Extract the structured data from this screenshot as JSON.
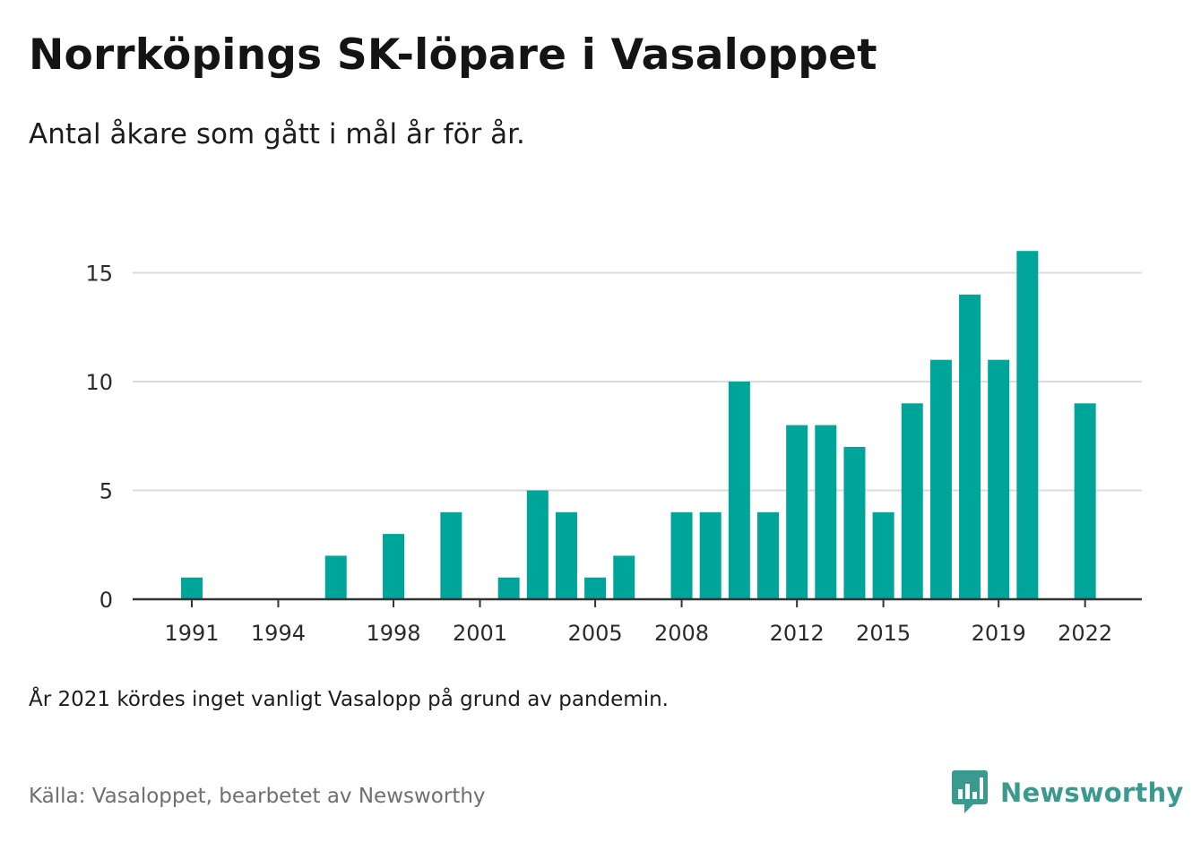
{
  "header": {
    "title": "Norrköpings SK-löpare i Vasaloppet",
    "subtitle": "Antal åkare som gått i mål år för år."
  },
  "footer": {
    "note": "År 2021 kördes inget vanligt Vasalopp på grund av pandemin.",
    "source": "Källa: Vasaloppet, bearbetet av Newsworthy",
    "brand_name": "Newsworthy"
  },
  "colors": {
    "bar": "#00a59a",
    "grid": "#dcdcdc",
    "axis": "#333333",
    "brand": "#3a9a8f"
  },
  "chart_data": {
    "type": "bar",
    "title": "Norrköpings SK-löpare i Vasaloppet",
    "subtitle": "Antal åkare som gått i mål år för år.",
    "xlabel": "",
    "ylabel": "",
    "ylim": [
      0,
      17
    ],
    "yticks": [
      0,
      5,
      10,
      15
    ],
    "grid": true,
    "x_tick_labels": [
      "1991",
      "1994",
      "1998",
      "2001",
      "2005",
      "2008",
      "2012",
      "2015",
      "2019",
      "2022"
    ],
    "categories": [
      "1990",
      "1991",
      "1992",
      "1993",
      "1994",
      "1995",
      "1996",
      "1997",
      "1998",
      "1999",
      "2000",
      "2001",
      "2002",
      "2003",
      "2004",
      "2005",
      "2006",
      "2007",
      "2008",
      "2009",
      "2010",
      "2011",
      "2012",
      "2013",
      "2014",
      "2015",
      "2016",
      "2017",
      "2018",
      "2019",
      "2020",
      "2021",
      "2022"
    ],
    "values": [
      0,
      1,
      0,
      0,
      0,
      0,
      2,
      0,
      3,
      0,
      4,
      0,
      1,
      5,
      4,
      1,
      2,
      0,
      4,
      4,
      10,
      4,
      8,
      8,
      7,
      4,
      9,
      11,
      14,
      11,
      16,
      0,
      9
    ]
  }
}
